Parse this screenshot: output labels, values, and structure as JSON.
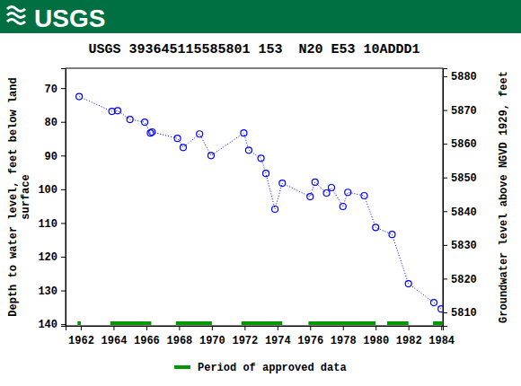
{
  "chart_data": {
    "type": "line",
    "logo": "USGS",
    "title": "USGS 393645115585801 153  N20 E53 10ADDD1",
    "y_label": "Depth to water level, feet below land\nsurface",
    "y2_label": "Groundwater level above NGVD 1929, feet",
    "x": [
      1961.9,
      1963.9,
      1964.25,
      1965.0,
      1965.9,
      1966.25,
      1966.35,
      1967.9,
      1968.25,
      1969.25,
      1969.95,
      1971.95,
      1972.25,
      1973.0,
      1973.3,
      1973.85,
      1974.3,
      1976.0,
      1976.3,
      1977.0,
      1977.3,
      1978.0,
      1978.3,
      1979.3,
      1980.0,
      1981.0,
      1982.0,
      1983.55,
      1984.0
    ],
    "series": [
      {
        "color": "#0000ff",
        "marker": "circle",
        "line_style": "dotted",
        "values": [
          72.5,
          76.9,
          76.7,
          79.3,
          80.1,
          83.3,
          83.0,
          84.9,
          87.6,
          83.6,
          90.0,
          83.3,
          88.4,
          90.8,
          95.3,
          105.9,
          98.2,
          102.2,
          97.9,
          101.1,
          99.5,
          105.1,
          100.9,
          101.9,
          111.3,
          113.4,
          128.0,
          133.6,
          135.5
        ]
      }
    ],
    "approved_periods": {
      "name": "Period of approved data",
      "color": "#009900",
      "ranges": [
        [
          1961.8,
          1962.0
        ],
        [
          1963.8,
          1966.3
        ],
        [
          1967.8,
          1970.0
        ],
        [
          1971.8,
          1974.3
        ],
        [
          1975.9,
          1980.0
        ],
        [
          1980.7,
          1982.0
        ],
        [
          1983.5,
          1984.1
        ]
      ]
    },
    "legend": "bottom",
    "xlim": [
      1961.07,
      1984.1
    ],
    "xticks": [
      1962,
      1964,
      1966,
      1968,
      1970,
      1972,
      1974,
      1976,
      1978,
      1980,
      1982,
      1984
    ],
    "ylim": [
      140.5,
      64.1
    ],
    "yticks": [
      70,
      80,
      90,
      100,
      110,
      120,
      130,
      140
    ],
    "y2lim": [
      5806,
      5882.4
    ],
    "y2ticks": [
      5810,
      5820,
      5830,
      5840,
      5850,
      5860,
      5870,
      5880
    ],
    "grid": false
  }
}
